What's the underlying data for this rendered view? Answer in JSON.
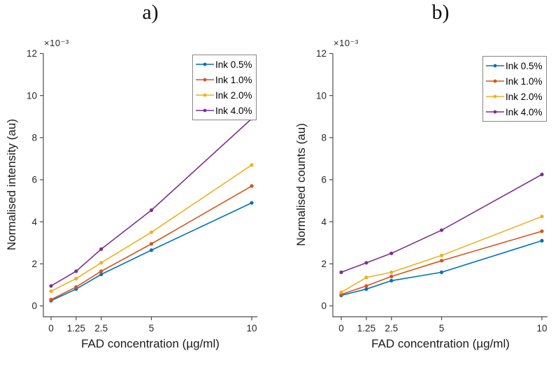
{
  "figure": {
    "background": "#ffffff",
    "panel_labels": [
      "a)",
      "b)"
    ]
  },
  "chart_data": [
    {
      "type": "line",
      "title": "a)",
      "xlabel": "FAD concentration (µg/ml)",
      "ylabel": "Normalised intensity (au)",
      "y_exponent_label": "×10⁻³",
      "values_scale": "1e-3",
      "x": [
        0,
        1.25,
        2.5,
        5,
        10
      ],
      "xtick_labels": [
        "0",
        "1.25",
        "2.5",
        "5",
        "10"
      ],
      "yticks": [
        0,
        2,
        4,
        6,
        8,
        10,
        12
      ],
      "ytick_labels": [
        "0",
        "2",
        "4",
        "6",
        "8",
        "10",
        "12"
      ],
      "xlim": [
        -0.4,
        10.3
      ],
      "ylim": [
        -0.5,
        12
      ],
      "grid": false,
      "legend_position": "top-right",
      "series": [
        {
          "name": "Ink 0.5%",
          "color": "#0072BD",
          "values": [
            0.25,
            0.8,
            1.5,
            2.65,
            4.9
          ]
        },
        {
          "name": "Ink 1.0%",
          "color": "#D95319",
          "values": [
            0.3,
            0.9,
            1.65,
            2.95,
            5.7
          ]
        },
        {
          "name": "Ink 2.0%",
          "color": "#EDB120",
          "values": [
            0.7,
            1.3,
            2.05,
            3.5,
            6.7
          ]
        },
        {
          "name": "Ink 4.0%",
          "color": "#7E2F8E",
          "values": [
            0.95,
            1.65,
            2.7,
            4.55,
            8.9
          ]
        }
      ]
    },
    {
      "type": "line",
      "title": "b)",
      "xlabel": "FAD concentration (µg/ml)",
      "ylabel": "Normalised counts (au)",
      "y_exponent_label": "×10⁻³",
      "values_scale": "1e-3",
      "x": [
        0,
        1.25,
        2.5,
        5,
        10
      ],
      "xtick_labels": [
        "0",
        "1.25",
        "2.5",
        "5",
        "10"
      ],
      "yticks": [
        0,
        2,
        4,
        6,
        8,
        10,
        12
      ],
      "ytick_labels": [
        "0",
        "2",
        "4",
        "6",
        "8",
        "10",
        "12"
      ],
      "xlim": [
        -0.4,
        10.3
      ],
      "ylim": [
        -0.5,
        12
      ],
      "grid": false,
      "legend_position": "top-right",
      "series": [
        {
          "name": "Ink 0.5%",
          "color": "#0072BD",
          "values": [
            0.5,
            0.8,
            1.2,
            1.6,
            3.1
          ]
        },
        {
          "name": "Ink 1.0%",
          "color": "#D95319",
          "values": [
            0.55,
            0.95,
            1.4,
            2.15,
            3.55
          ]
        },
        {
          "name": "Ink 2.0%",
          "color": "#EDB120",
          "values": [
            0.65,
            1.35,
            1.6,
            2.4,
            4.25
          ]
        },
        {
          "name": "Ink 4.0%",
          "color": "#7E2F8E",
          "values": [
            1.6,
            2.05,
            2.5,
            3.6,
            6.25
          ]
        }
      ]
    }
  ],
  "style": {
    "axis_color": "#4d4d4d",
    "tick_text_color": "#262626",
    "label_text_color": "#1a1a1a",
    "legend_border_color": "#878787"
  }
}
